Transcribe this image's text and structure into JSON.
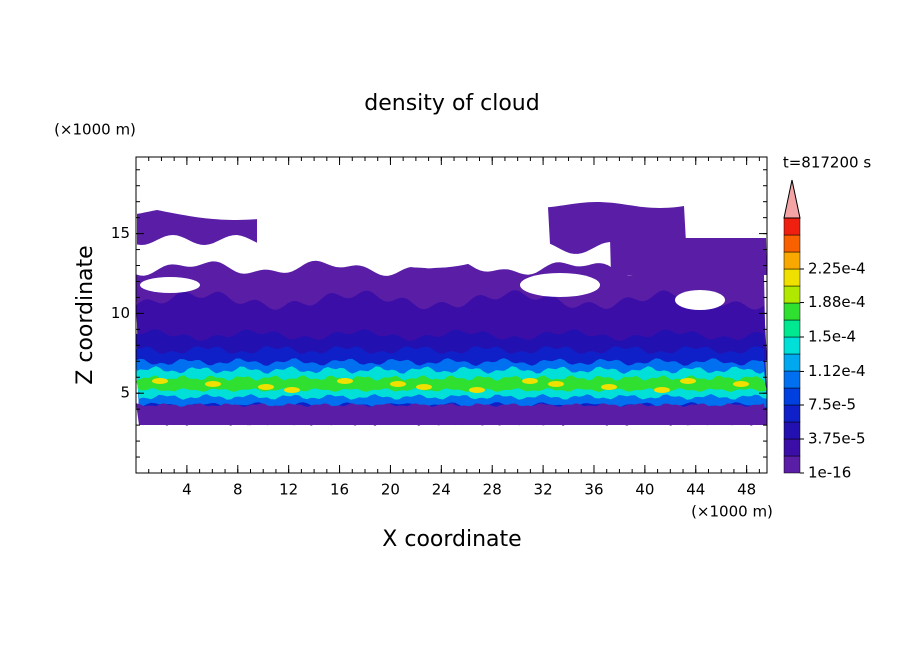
{
  "chart_data": {
    "type": "contour",
    "title": "density of cloud",
    "xlabel": "X coordinate",
    "ylabel": "Z coordinate",
    "xunit": "(×1000 m)",
    "yunit": "(×1000 m)",
    "annotation": "t=817200 s",
    "xlim": [
      0,
      49.6
    ],
    "ylim": [
      0,
      19.8
    ],
    "xticks": [
      4,
      8,
      12,
      16,
      20,
      24,
      28,
      32,
      36,
      40,
      44,
      48
    ],
    "yticks": [
      5,
      10,
      15
    ],
    "colorbar": {
      "ticks": [
        {
          "value": 1e-16,
          "label": "1e-16"
        },
        {
          "value": 3.75e-05,
          "label": "3.75e-5"
        },
        {
          "value": 7.5e-05,
          "label": "7.5e-5"
        },
        {
          "value": 0.000112,
          "label": "1.12e-4"
        },
        {
          "value": 0.00015,
          "label": "1.5e-4"
        },
        {
          "value": 0.000188,
          "label": "1.88e-4"
        },
        {
          "value": 0.000225,
          "label": "2.25e-4"
        }
      ],
      "colors": [
        "#5a1ea6",
        "#3c0ea8",
        "#2210b0",
        "#1020c8",
        "#0040e0",
        "#0070f0",
        "#00a8f0",
        "#00e0d8",
        "#00e890",
        "#30e030",
        "#b0e800",
        "#f0e000",
        "#f8a800",
        "#f86000",
        "#f02010"
      ],
      "extend_color": "#f4a4a4"
    }
  }
}
